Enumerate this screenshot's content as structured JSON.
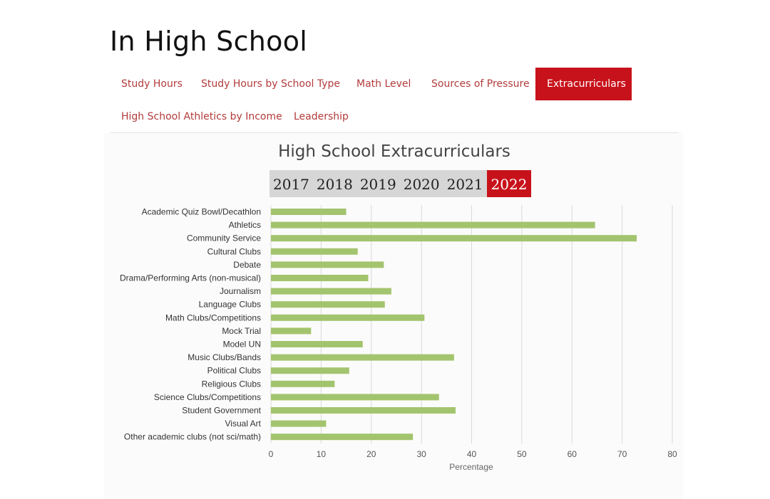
{
  "page": {
    "title": "In High School",
    "tabs_row1": [
      {
        "label": "Study Hours",
        "active": false
      },
      {
        "label": "Study Hours by School Type",
        "active": false
      },
      {
        "label": "Math Level",
        "active": false
      },
      {
        "label": "Sources of Pressure",
        "active": false
      },
      {
        "label": "Extracurriculars",
        "active": true
      }
    ],
    "tabs_row2": [
      {
        "label": "High School Athletics by Income",
        "active": false
      },
      {
        "label": "Leadership",
        "active": false
      }
    ]
  },
  "years": [
    {
      "label": "2017",
      "active": false
    },
    {
      "label": "2018",
      "active": false
    },
    {
      "label": "2019",
      "active": false
    },
    {
      "label": "2020",
      "active": false
    },
    {
      "label": "2021",
      "active": false
    },
    {
      "label": "2022",
      "active": true
    }
  ],
  "colors": {
    "accent": "#c8121b",
    "bar": "#a3c46e",
    "gridline": "#d9d9d9"
  },
  "chart_data": {
    "type": "bar",
    "orientation": "horizontal",
    "title": "High School Extracurriculars",
    "xlabel": "Percentage",
    "ylabel": "",
    "xlim": [
      0,
      80
    ],
    "xticks": [
      0,
      10,
      20,
      30,
      40,
      50,
      60,
      70,
      80
    ],
    "grid": true,
    "categories": [
      "Academic Quiz Bowl/Decathlon",
      "Athletics",
      "Community Service",
      "Cultural Clubs",
      "Debate",
      "Drama/Performing Arts (non-musical)",
      "Journalism",
      "Language Clubs",
      "Math Clubs/Competitions",
      "Mock Trial",
      "Model UN",
      "Music Clubs/Bands",
      "Political Clubs",
      "Religious Clubs",
      "Science Clubs/Competitions",
      "Student Government",
      "Visual Art",
      "Other academic clubs (not sci/math)"
    ],
    "values": [
      15,
      64.6,
      72.9,
      17.3,
      22.5,
      19.4,
      24,
      22.7,
      30.6,
      8,
      18.3,
      36.5,
      15.6,
      12.7,
      33.5,
      36.8,
      11,
      28.3
    ]
  }
}
